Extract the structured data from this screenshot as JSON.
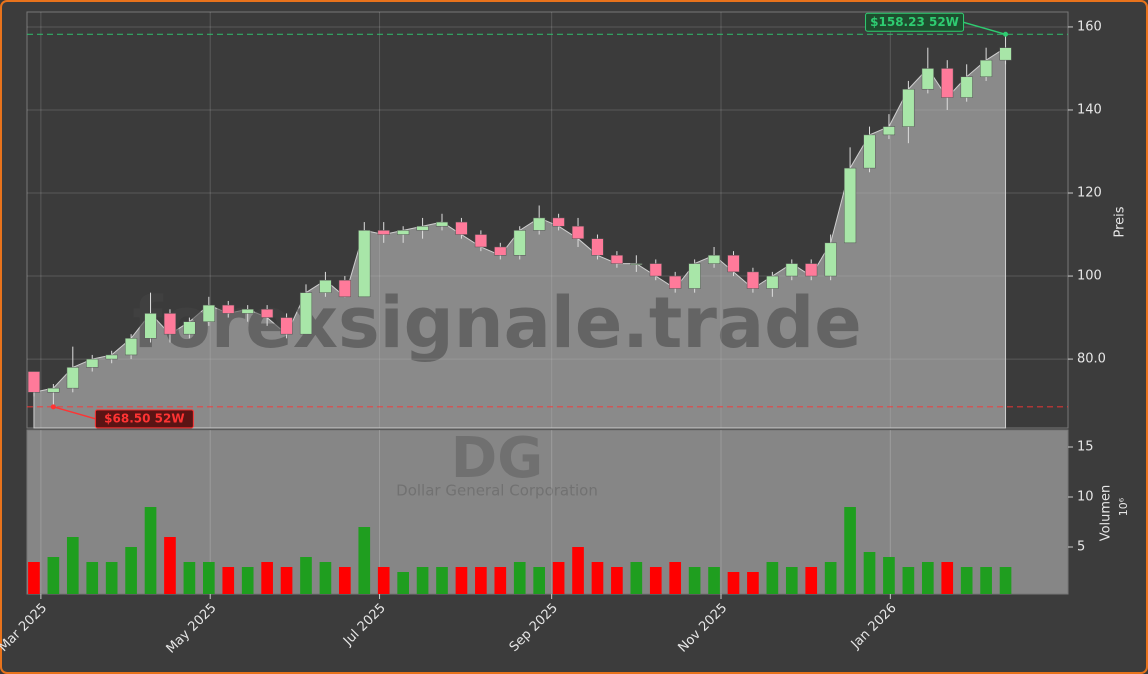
{
  "chart_data": {
    "type": "candlestick",
    "watermark": "forexsignale.trade",
    "symbol": "DG",
    "company": "Dollar General Corporation",
    "y_label": "Preis",
    "volume_label": "Volumen",
    "volume_scale_label": "10⁶",
    "grid": true,
    "up_color": "#a8e6a8",
    "down_color": "#ff7a9a",
    "volume_up_color": "#1f9e1f",
    "volume_down_color": "#ff0000",
    "area_color": "#8a8a8a",
    "x": [
      "2025-02-24",
      "2025-03-03",
      "2025-03-10",
      "2025-03-17",
      "2025-03-24",
      "2025-03-31",
      "2025-04-07",
      "2025-04-14",
      "2025-04-21",
      "2025-04-28",
      "2025-05-05",
      "2025-05-12",
      "2025-05-19",
      "2025-05-26",
      "2025-06-02",
      "2025-06-09",
      "2025-06-16",
      "2025-06-23",
      "2025-06-30",
      "2025-07-07",
      "2025-07-14",
      "2025-07-21",
      "2025-07-28",
      "2025-08-04",
      "2025-08-11",
      "2025-08-18",
      "2025-08-25",
      "2025-09-01",
      "2025-09-08",
      "2025-09-15",
      "2025-09-22",
      "2025-09-29",
      "2025-10-06",
      "2025-10-13",
      "2025-10-20",
      "2025-10-27",
      "2025-11-03",
      "2025-11-10",
      "2025-11-17",
      "2025-11-24",
      "2025-12-01",
      "2025-12-08",
      "2025-12-15",
      "2025-12-22",
      "2025-12-29",
      "2026-01-05",
      "2026-01-12",
      "2026-01-19",
      "2026-01-26",
      "2026-02-02",
      "2026-02-09"
    ],
    "open": [
      77,
      72,
      73,
      78,
      80,
      81,
      85,
      91,
      86,
      89,
      93,
      91,
      92,
      90,
      86,
      96,
      99,
      95,
      111,
      110,
      111,
      112,
      113,
      110,
      107,
      105,
      111,
      114,
      112,
      109,
      105,
      103,
      103,
      100,
      97,
      103,
      105,
      101,
      97,
      100,
      103,
      100,
      108,
      126,
      134,
      136,
      145,
      150,
      143,
      148,
      152
    ],
    "high": [
      77,
      74,
      83,
      81,
      82,
      86,
      96,
      92,
      90,
      95,
      94,
      93,
      93,
      91,
      98,
      101,
      100,
      113,
      113,
      112,
      114,
      115,
      114,
      111,
      108,
      112,
      117,
      115,
      114,
      110,
      106,
      105,
      104,
      101,
      104,
      107,
      106,
      102,
      101,
      104,
      104,
      110,
      131,
      136,
      139,
      147,
      155,
      152,
      151,
      155,
      158.23
    ],
    "low": [
      71,
      68.5,
      72,
      77,
      79,
      80,
      84,
      84,
      85,
      88,
      90,
      89,
      88,
      85,
      86,
      95,
      95,
      95,
      108,
      108,
      109,
      111,
      109,
      106,
      104,
      104,
      110,
      111,
      107,
      104,
      102,
      101,
      99,
      96,
      96,
      102,
      100,
      96,
      95,
      99,
      99,
      99,
      108,
      125,
      133,
      132,
      144,
      140,
      142,
      147,
      151
    ],
    "close": [
      72,
      73,
      78,
      80,
      81,
      85,
      91,
      86,
      89,
      93,
      91,
      92,
      90,
      86,
      96,
      99,
      95,
      111,
      110,
      111,
      112,
      113,
      110,
      107,
      105,
      111,
      114,
      112,
      109,
      105,
      103,
      103,
      100,
      97,
      103,
      105,
      101,
      97,
      100,
      103,
      100,
      108,
      126,
      134,
      136,
      145,
      150,
      143,
      148,
      152,
      155
    ],
    "volume": [
      3.5,
      4,
      6,
      3.5,
      3.5,
      5,
      9,
      6,
      3.5,
      3.5,
      3,
      3,
      3.5,
      3,
      4,
      3.5,
      3,
      7,
      3,
      2.5,
      3,
      3,
      3,
      3,
      3,
      3.5,
      3,
      3.5,
      5,
      3.5,
      3,
      3.5,
      3,
      3.5,
      3,
      3,
      2.5,
      2.5,
      3.5,
      3,
      3,
      3.5,
      9,
      4.5,
      4,
      3,
      3.5,
      3.5,
      3,
      3,
      3
    ],
    "xlim": [
      "2025-02-24",
      "2026-03-06"
    ],
    "xticks": [
      {
        "value": "2025-03-01",
        "label": "Mar 2025"
      },
      {
        "value": "2025-05-01",
        "label": "May 2025"
      },
      {
        "value": "2025-07-01",
        "label": "Jul 2025"
      },
      {
        "value": "2025-09-01",
        "label": "Sep 2025"
      },
      {
        "value": "2025-11-01",
        "label": "Nov 2025"
      },
      {
        "value": "2026-01-01",
        "label": "Jan 2026"
      }
    ],
    "ylim": [
      63.4,
      163.6
    ],
    "yticks": [
      {
        "value": 80,
        "label": "80.0"
      },
      100,
      120,
      140,
      160
    ],
    "volume_ylim": [
      0.3,
      16.7
    ],
    "volume_yticks": [
      5,
      10,
      15
    ],
    "annotations": [
      {
        "text": "$158.23 52W",
        "value": 158.23,
        "x": "2026-02-09",
        "color": "#2ecc71"
      },
      {
        "text": "$68.50 52W",
        "value": 68.5,
        "x": "2025-03-03",
        "color": "#ff3333"
      }
    ]
  }
}
